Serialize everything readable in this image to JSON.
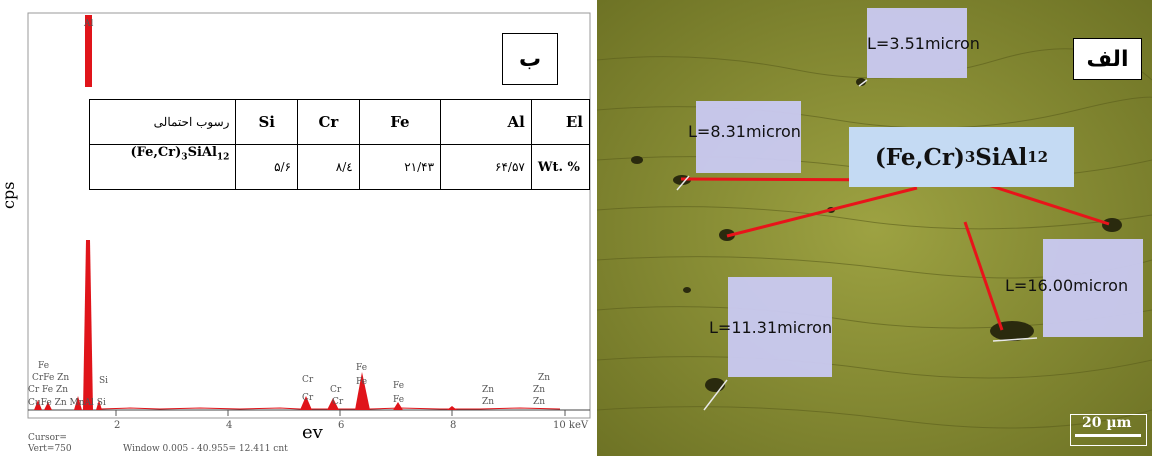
{
  "left_panel": {
    "tag": "ب",
    "y_axis_label": "cps",
    "x_axis_label": "ev",
    "x_ticks": [
      "2",
      "4",
      "6",
      "8",
      "10 keV"
    ],
    "cursor_label": "Cursor=",
    "vert_label": "Vert=750",
    "window_label": "Window 0.005 - 40.955=  12.411 cnt",
    "peak_labels": {
      "al_top": "Al",
      "fe_left": "Fe",
      "cr_fe_zn_1": "CrFe Zn",
      "cr_fe_zn_2": "Cr  Fe Zn",
      "cu_fe_zn_mn_al_si": "CuFe  Zn MnAl Si",
      "si": "Si",
      "cr_a": "Cr",
      "cr_b": "Cr",
      "cr_c": "Cr",
      "cr_d": "Cr",
      "fe_a": "Fe",
      "fe_b": "Fe",
      "fe_c": "Fe",
      "fe_d": "Fe",
      "zn_a": "Zn",
      "zn_b": "Zn",
      "zn_c": "Zn",
      "zn_d": "Zn",
      "zn_e": "Zn"
    },
    "table": {
      "header": [
        "رسوب احتمالی",
        "Si",
        "Cr",
        "Fe",
        "Al",
        "El"
      ],
      "row": [
        "(Fe,Cr)3SiAl12",
        "۵/۶",
        "۸/٤",
        "۲۱/۴۳",
        "۶۴/۵۷",
        "Wt. %"
      ]
    }
  },
  "right_panel": {
    "tag": "الف",
    "formula_main": "(Fe,Cr)",
    "formula_sub1": "3",
    "formula_mid": "SiAl",
    "formula_sub2": "12",
    "measurements": [
      "L=3.51micron",
      "L=8.31micron",
      "L=16.00micron",
      "L=11.31micron"
    ],
    "scale_bar": "20 µm"
  },
  "colors": {
    "spectrum_peak": "#e0141a",
    "micrograph_bg": "#8c8f35",
    "measure_box": "#c9c9f0",
    "formula_box": "#c4daf3",
    "measure_line": "#e8141a"
  }
}
